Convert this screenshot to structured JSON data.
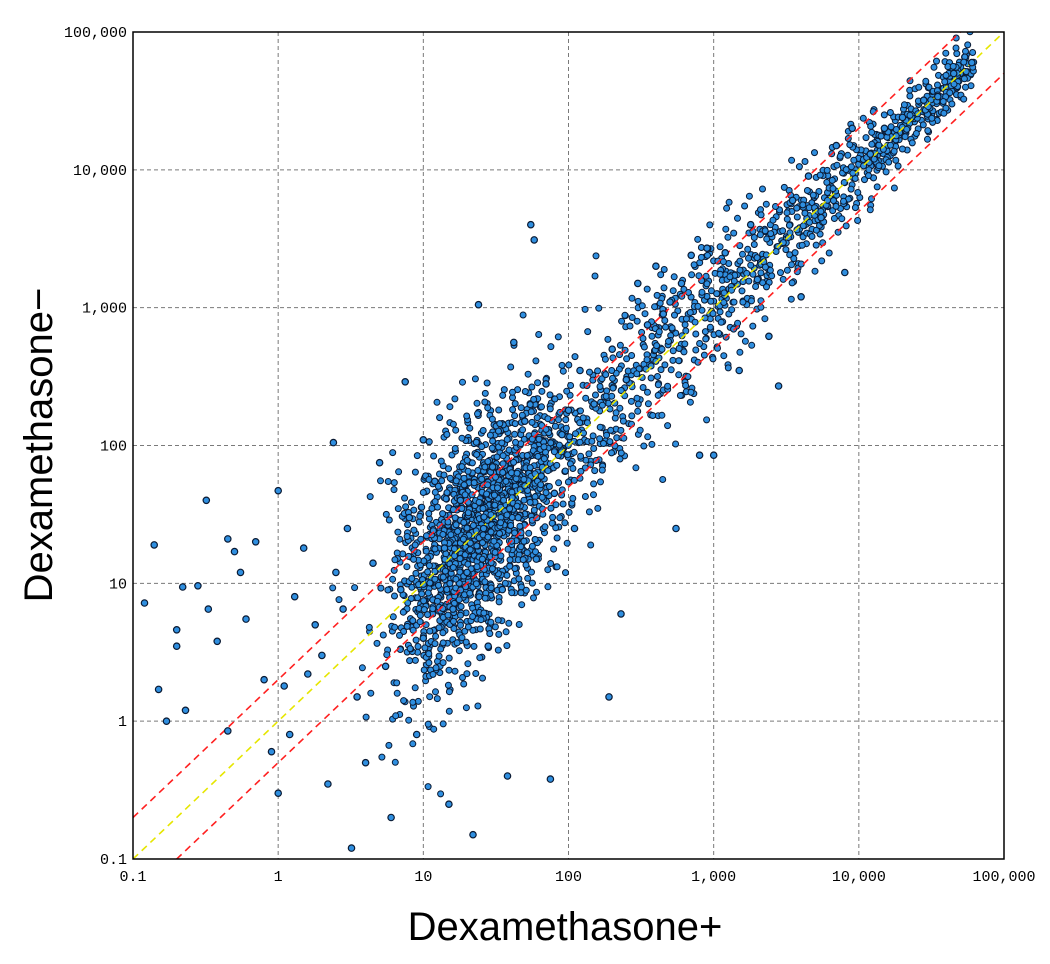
{
  "chart_data": {
    "type": "scatter",
    "title": "",
    "xlabel": "Dexamethasone+",
    "ylabel": "Dexamethasone−",
    "xscale": "log",
    "yscale": "log",
    "xlim": [
      0.1,
      100000
    ],
    "ylim": [
      0.1,
      100000
    ],
    "xticks": [
      "0.1",
      "1",
      "10",
      "100",
      "1,000",
      "10,000",
      "100,000"
    ],
    "yticks": [
      "0.1",
      "1",
      "10",
      "100",
      "1,000",
      "10,000",
      "100,000"
    ],
    "grid": true,
    "legend": "none",
    "reference_lines": [
      {
        "name": "y = x",
        "color": "#e6e600",
        "style": "dashed",
        "fold": 1
      },
      {
        "name": "2-fold up",
        "color": "#ff2020",
        "style": "dashed",
        "fold": 2
      },
      {
        "name": "2-fold down",
        "color": "#ff2020",
        "style": "dashed",
        "fold": 0.5
      }
    ],
    "point_color": "#2f8fe0",
    "point_edge_color": "#0a1a33",
    "points": [
      [
        0.12,
        7.2
      ],
      [
        0.14,
        19
      ],
      [
        0.15,
        1.7
      ],
      [
        0.17,
        1.0
      ],
      [
        0.2,
        3.5
      ],
      [
        0.2,
        4.6
      ],
      [
        0.22,
        9.4
      ],
      [
        0.23,
        1.2
      ],
      [
        0.28,
        9.6
      ],
      [
        0.32,
        40
      ],
      [
        0.33,
        6.5
      ],
      [
        0.38,
        3.8
      ],
      [
        0.45,
        21
      ],
      [
        0.45,
        0.85
      ],
      [
        0.5,
        17
      ],
      [
        0.55,
        12
      ],
      [
        0.6,
        5.5
      ],
      [
        0.7,
        20
      ],
      [
        0.8,
        2.0
      ],
      [
        0.9,
        0.6
      ],
      [
        1.0,
        47
      ],
      [
        1.0,
        0.3
      ],
      [
        1.1,
        1.8
      ],
      [
        1.2,
        0.8
      ],
      [
        1.3,
        8.0
      ],
      [
        1.5,
        18
      ],
      [
        1.6,
        2.2
      ],
      [
        1.8,
        5.0
      ],
      [
        2.0,
        3.0
      ],
      [
        2.2,
        0.35
      ],
      [
        2.4,
        105
      ],
      [
        2.5,
        12
      ],
      [
        2.8,
        6.5
      ],
      [
        3.0,
        25
      ],
      [
        3.2,
        0.12
      ],
      [
        3.5,
        1.5
      ],
      [
        4.0,
        0.5
      ],
      [
        4.5,
        14
      ],
      [
        5.0,
        75
      ],
      [
        5.5,
        2.5
      ],
      [
        6.0,
        0.2
      ],
      [
        7.0,
        9.0
      ],
      [
        7.5,
        290
      ],
      [
        8.0,
        30
      ],
      [
        9.0,
        0.8
      ],
      [
        10,
        110
      ],
      [
        10,
        4.0
      ],
      [
        12,
        55
      ],
      [
        14,
        18
      ],
      [
        15,
        0.25
      ],
      [
        16,
        6.5
      ],
      [
        18,
        40
      ],
      [
        20,
        12
      ],
      [
        22,
        0.15
      ],
      [
        24,
        1050
      ],
      [
        26,
        25
      ],
      [
        28,
        3.5
      ],
      [
        30,
        70
      ],
      [
        35,
        9.0
      ],
      [
        38,
        0.4
      ],
      [
        42,
        560
      ],
      [
        45,
        30
      ],
      [
        50,
        150
      ],
      [
        55,
        4000
      ],
      [
        58,
        3100
      ],
      [
        60,
        15
      ],
      [
        65,
        60
      ],
      [
        70,
        280
      ],
      [
        75,
        0.38
      ],
      [
        80,
        45
      ],
      [
        90,
        120
      ],
      [
        100,
        180
      ],
      [
        110,
        25
      ],
      [
        120,
        350
      ],
      [
        150,
        200
      ],
      [
        190,
        1.5
      ],
      [
        200,
        500
      ],
      [
        230,
        6.0
      ],
      [
        250,
        300
      ],
      [
        300,
        1500
      ],
      [
        350,
        750
      ],
      [
        400,
        2000
      ],
      [
        450,
        900
      ],
      [
        500,
        1100
      ],
      [
        550,
        25
      ],
      [
        600,
        1500
      ],
      [
        700,
        2400
      ],
      [
        800,
        85
      ],
      [
        900,
        2700
      ],
      [
        1000,
        85
      ],
      [
        1200,
        2500
      ],
      [
        1500,
        350
      ],
      [
        1800,
        4000
      ],
      [
        2000,
        1600
      ],
      [
        2400,
        620
      ],
      [
        2800,
        270
      ],
      [
        3500,
        6000
      ],
      [
        4000,
        1200
      ],
      [
        4500,
        9000
      ],
      [
        5500,
        4500
      ],
      [
        7000,
        15000
      ],
      [
        8000,
        1800
      ],
      [
        9000,
        20000
      ],
      [
        12000,
        13000
      ],
      [
        15000,
        20000
      ],
      [
        20000,
        24000
      ],
      [
        28000,
        32000
      ],
      [
        35000,
        34000
      ],
      [
        45000,
        50000
      ],
      [
        60000,
        60000
      ]
    ]
  }
}
